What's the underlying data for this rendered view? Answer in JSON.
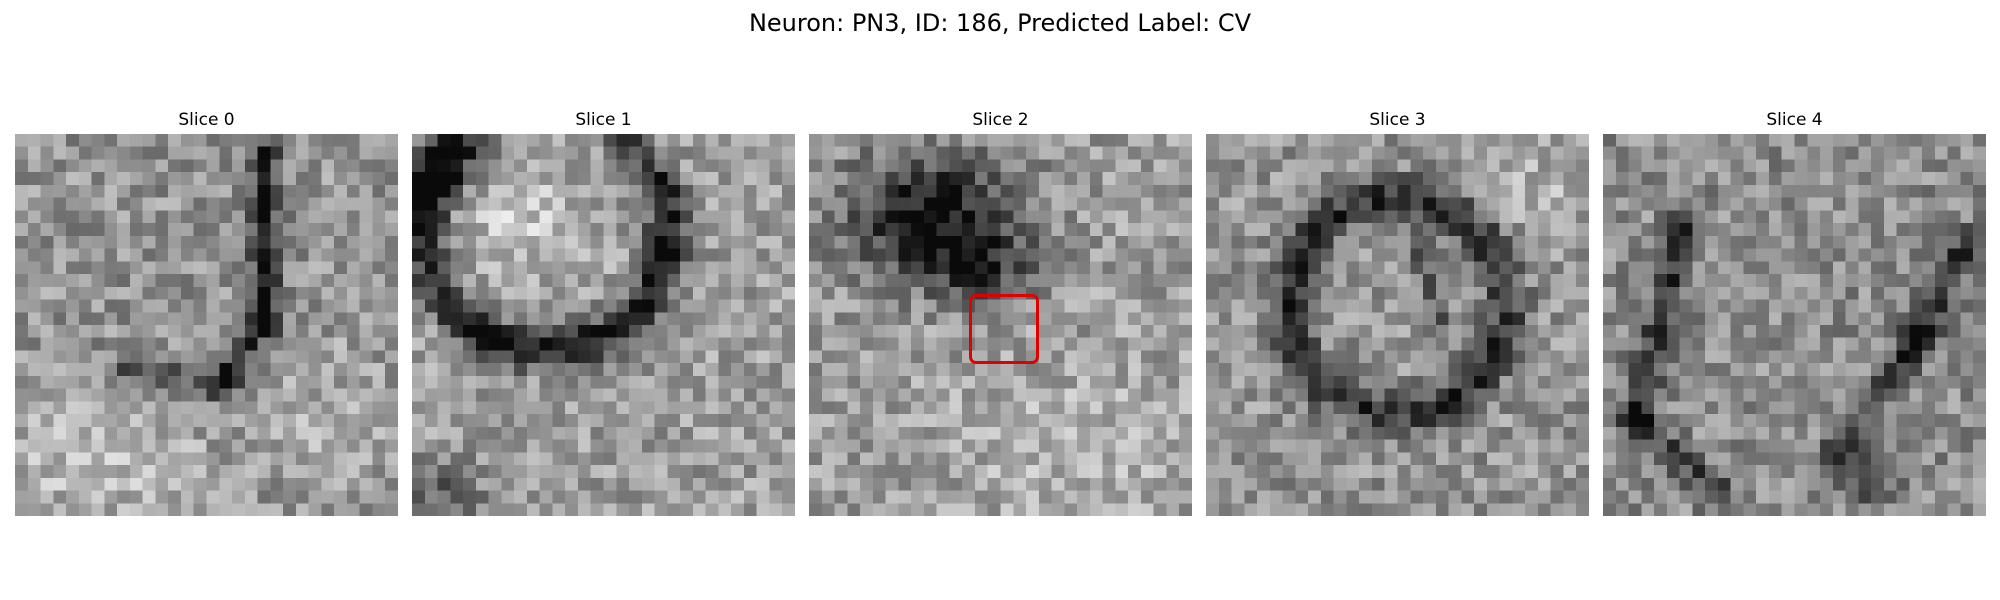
{
  "figure": {
    "title": "Neuron: PN3, ID: 186, Predicted Label: CV"
  },
  "panels": [
    {
      "title": "Slice 0"
    },
    {
      "title": "Slice 1"
    },
    {
      "title": "Slice 2"
    },
    {
      "title": "Slice 3"
    },
    {
      "title": "Slice 4"
    }
  ],
  "colors": {
    "roi_outline": "#e00000",
    "colormap": "grayscale"
  }
}
